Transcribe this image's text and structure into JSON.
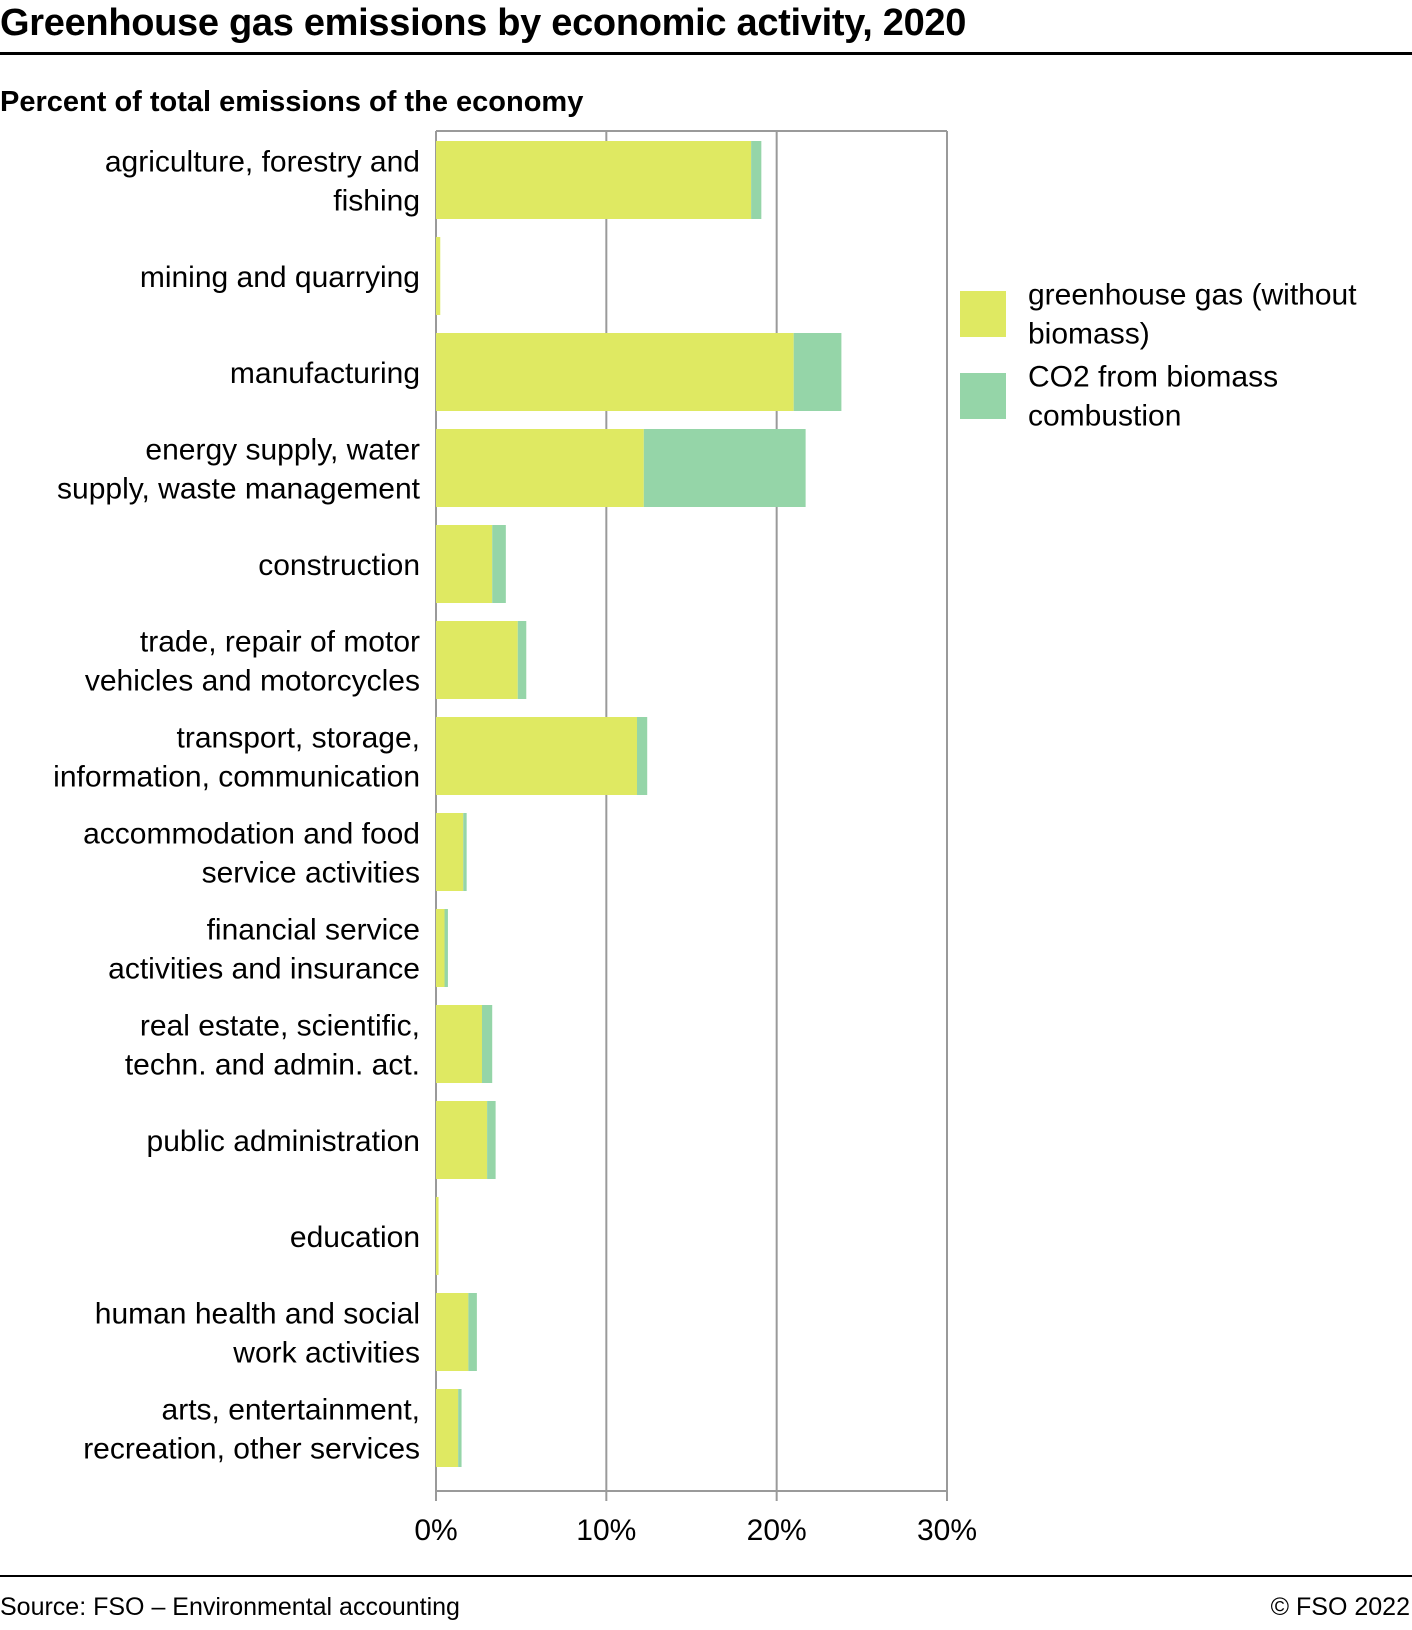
{
  "header": {
    "title": "Greenhouse gas emissions by economic activity, 2020",
    "subtitle": "Percent of total emissions of the economy"
  },
  "footer": {
    "source": "Source: FSO – Environmental accounting",
    "copyright": "© FSO 2022"
  },
  "chart_data": {
    "type": "bar",
    "orientation": "horizontal",
    "stacked": true,
    "title": "Greenhouse gas emissions by economic activity, 2020",
    "subtitle": "Percent of total emissions of the economy",
    "categories": [
      [
        "agriculture, forestry and",
        "fishing"
      ],
      [
        "mining and quarrying"
      ],
      [
        "manufacturing"
      ],
      [
        "energy supply, water",
        "supply, waste management"
      ],
      [
        "construction"
      ],
      [
        "trade, repair of motor",
        "vehicles and motorcycles"
      ],
      [
        "transport, storage,",
        "information, communication"
      ],
      [
        "accommodation and food",
        "service activities"
      ],
      [
        "financial service",
        "activities and insurance"
      ],
      [
        "real estate, scientific,",
        "techn. and admin. act."
      ],
      [
        "public administration"
      ],
      [
        "education"
      ],
      [
        "human health and social",
        "work activities"
      ],
      [
        "arts, entertainment,",
        "recreation, other services"
      ]
    ],
    "series": [
      {
        "name": "greenhouse gas (without biomass)",
        "legend_lines": [
          "greenhouse gas (without",
          "biomass)"
        ],
        "color": "#dfe962",
        "values": [
          18.5,
          0.25,
          21.0,
          12.2,
          3.3,
          4.8,
          11.8,
          1.6,
          0.5,
          2.7,
          3.0,
          0.15,
          1.9,
          1.3
        ]
      },
      {
        "name": "CO2 from biomass combustion",
        "legend_lines": [
          "CO2 from biomass",
          "combustion"
        ],
        "color": "#95d5a8",
        "values": [
          0.6,
          0.0,
          2.8,
          9.5,
          0.8,
          0.5,
          0.6,
          0.2,
          0.2,
          0.6,
          0.5,
          0.0,
          0.5,
          0.2
        ]
      }
    ],
    "xlim": [
      0,
      30
    ],
    "xticks": [
      0,
      10,
      20,
      30
    ],
    "tick_labels": [
      "0%",
      "10%",
      "20%",
      "30%"
    ],
    "grid": true,
    "legend_position": "right"
  }
}
